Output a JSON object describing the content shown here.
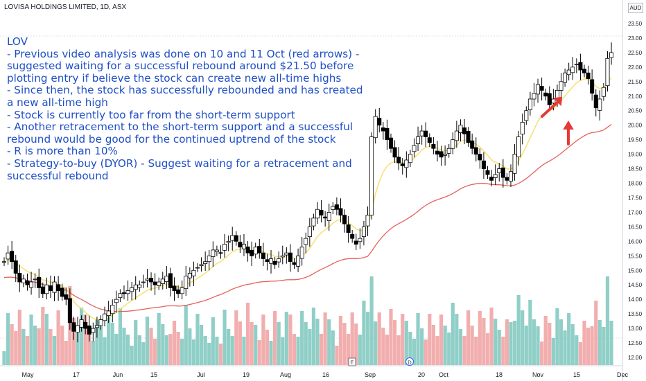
{
  "header": {
    "symbol_line": "LOVISA HOLDINGS LIMITED, 1D, ASX",
    "currency": "AUD"
  },
  "annotation": {
    "lines": [
      "LOV",
      "- Previous video analysis was done on 10 and 11 Oct (red arrows) -",
      "suggested waiting for a successful rebound around $21.50 before",
      "plotting entry if believe the stock can create new all-time highs",
      "- Since then, the stock has successfully rebounded and has created",
      "a new all-time high",
      "- Stock is currently too far from the short-term support",
      "- Another retracement to the short-term support and a successful",
      "rebound would be good for the continued uptrend of the stock",
      "- R is more than 10%",
      "- Strategy-to-buy (DYOR) - Suggest waiting for a retracement and",
      "successful rebound"
    ]
  },
  "colors": {
    "up": "#ffffff",
    "down": "#000000",
    "ema_short": "#f6e27a",
    "ema_long": "#e5605a",
    "vol_up": "#7cc7bd",
    "vol_down": "#f0a0a0",
    "annotation_text": "#1f4fc6",
    "arrow": "#e53935"
  },
  "chart_data": {
    "type": "candlestick",
    "y_axis": {
      "ticks": [
        "12.00",
        "12.50",
        "13.00",
        "13.50",
        "14.00",
        "14.50",
        "15.00",
        "15.50",
        "16.00",
        "16.50",
        "17.00",
        "17.50",
        "18.00",
        "18.50",
        "19.00",
        "19.50",
        "20.00",
        "20.50",
        "21.00",
        "21.50",
        "22.00",
        "22.50",
        "23.00",
        "23.50"
      ],
      "range": [
        11.8,
        23.6
      ]
    },
    "x_axis": {
      "ticks": [
        "May",
        "17",
        "Jun",
        "15",
        "Jul",
        "19",
        "Aug",
        "16",
        "Sep",
        "20",
        "Oct",
        "18",
        "Nov",
        "15",
        "Dec"
      ]
    },
    "events": [
      "E",
      "D"
    ],
    "closes": [
      15.3,
      15.6,
      15.3,
      14.9,
      14.6,
      14.7,
      14.5,
      14.6,
      14.7,
      14.4,
      14.2,
      14.5,
      14.3,
      14.6,
      14.3,
      14.1,
      14.0,
      13.2,
      12.9,
      13.1,
      13.3,
      13.0,
      12.8,
      13.0,
      13.1,
      13.3,
      13.5,
      13.6,
      13.8,
      14.0,
      14.2,
      14.2,
      14.3,
      14.4,
      14.5,
      14.5,
      14.6,
      14.7,
      14.6,
      14.5,
      14.6,
      14.7,
      14.8,
      14.4,
      14.3,
      14.2,
      14.4,
      14.8,
      14.9,
      15.0,
      15.1,
      15.2,
      15.3,
      15.5,
      15.7,
      15.7,
      15.6,
      15.9,
      16.0,
      16.2,
      16.0,
      15.8,
      15.9,
      15.6,
      15.5,
      15.8,
      15.6,
      15.4,
      15.3,
      15.4,
      15.2,
      15.4,
      15.5,
      15.6,
      15.3,
      15.2,
      15.5,
      15.8,
      16.1,
      16.5,
      16.8,
      17.1,
      16.9,
      16.8,
      17.0,
      17.2,
      17.1,
      16.9,
      16.6,
      16.3,
      16.1,
      15.9,
      16.1,
      16.5,
      16.9,
      19.6,
      20.3,
      20.0,
      19.8,
      19.5,
      19.2,
      18.9,
      18.7,
      18.6,
      18.8,
      19.0,
      19.3,
      19.6,
      19.8,
      19.6,
      19.4,
      19.2,
      19.0,
      18.9,
      19.0,
      19.2,
      19.5,
      19.8,
      20.0,
      19.7,
      19.4,
      19.2,
      19.0,
      18.8,
      18.5,
      18.3,
      18.1,
      18.3,
      18.5,
      18.2,
      18.1,
      18.4,
      19.0,
      19.6,
      20.1,
      20.5,
      20.9,
      21.1,
      21.4,
      21.2,
      21.0,
      20.7,
      20.9,
      21.2,
      21.5,
      21.8,
      21.9,
      22.0,
      22.1,
      21.9,
      21.8,
      21.6,
      21.1,
      20.6,
      20.9,
      21.3,
      22.3,
      22.5
    ]
  }
}
